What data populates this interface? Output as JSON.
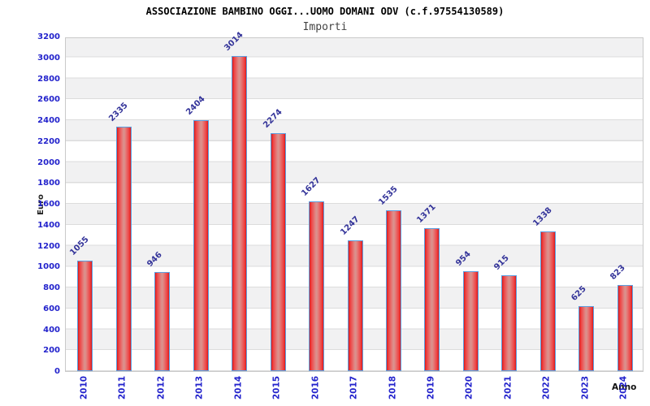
{
  "header": {
    "title": "ASSOCIAZIONE BAMBINO OGGI...UOMO DOMANI ODV (c.f.97554130589)",
    "subtitle": "Importi"
  },
  "chart_data": {
    "type": "bar",
    "title": "ASSOCIAZIONE BAMBINO OGGI...UOMO DOMANI ODV (c.f.97554130589)",
    "subtitle": "Importi",
    "xlabel": "Anno",
    "ylabel": "Euro",
    "categories": [
      "2010",
      "2011",
      "2012",
      "2013",
      "2014",
      "2015",
      "2016",
      "2017",
      "2018",
      "2019",
      "2020",
      "2021",
      "2022",
      "2023",
      "2024"
    ],
    "values": [
      1055,
      2335,
      946,
      2404,
      3014,
      2274,
      1627,
      1247,
      1535,
      1371,
      954,
      915,
      1338,
      625,
      823
    ],
    "ylim": [
      0,
      3200
    ],
    "ytick_step": 200,
    "grid": "horizontal-bands",
    "legend": "none",
    "colors": {
      "bar_edge_red": "#d91a1a",
      "bar_center": "#d8948f",
      "bar_border": "#5c9fe0",
      "tick_label_blue": "#2323cc",
      "value_label_navy": "#333399",
      "band_gray": "#f1f1f2",
      "band_white": "#ffffff",
      "title_black": "#000000",
      "subtitle_gray": "#444444"
    }
  }
}
